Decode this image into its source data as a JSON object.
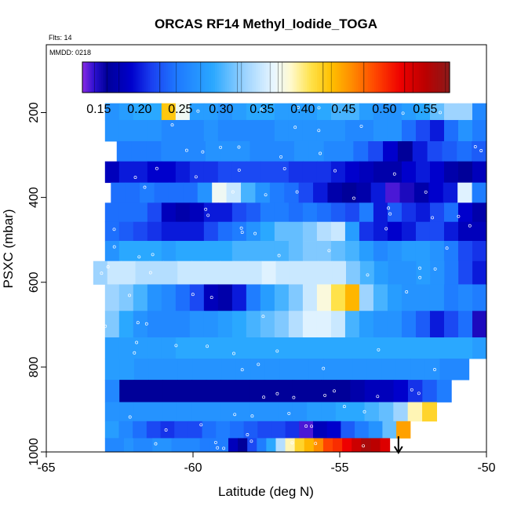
{
  "chart_data": {
    "type": "heatmap",
    "title": "ORCAS RF14 Methyl_Iodide_TOGA",
    "flights_label": "Flts: 14",
    "date_label": "MMDD: 0218",
    "xlabel": "Latitude (deg N)",
    "ylabel": "PSXC (mbar)",
    "xlim": [
      -65,
      -50
    ],
    "ylim": [
      1000,
      40
    ],
    "x_ticks": [
      -65,
      -60,
      -55,
      -50
    ],
    "x_tick_labels": [
      "-65",
      "-60",
      "-55",
      "-50"
    ],
    "y_ticks": [
      200,
      400,
      600,
      800,
      1000
    ],
    "y_tick_labels": [
      "200",
      "400",
      "600",
      "800",
      "1000"
    ],
    "colorbar": {
      "min": 0.13,
      "max": 0.58,
      "ticks": [
        0.15,
        0.2,
        0.25,
        0.3,
        0.35,
        0.4,
        0.45,
        0.5,
        0.55
      ],
      "tick_labels": [
        "0.15",
        "0.20",
        "0.25",
        "0.30",
        "0.35",
        "0.40",
        "0.45",
        "0.50",
        "0.55"
      ],
      "stops": [
        {
          "v": 0.13,
          "c": "#8a2be2"
        },
        {
          "v": 0.145,
          "c": "#2a0fd0"
        },
        {
          "v": 0.16,
          "c": "#000099"
        },
        {
          "v": 0.19,
          "c": "#0000cc"
        },
        {
          "v": 0.215,
          "c": "#1a40f0"
        },
        {
          "v": 0.245,
          "c": "#1e78ff"
        },
        {
          "v": 0.29,
          "c": "#2aa8ff"
        },
        {
          "v": 0.33,
          "c": "#9ed4ff"
        },
        {
          "v": 0.365,
          "c": "#eaf7ff"
        },
        {
          "v": 0.385,
          "c": "#fffad0"
        },
        {
          "v": 0.41,
          "c": "#ffe24a"
        },
        {
          "v": 0.435,
          "c": "#ffc000"
        },
        {
          "v": 0.46,
          "c": "#ff8c00"
        },
        {
          "v": 0.49,
          "c": "#ff4400"
        },
        {
          "v": 0.52,
          "c": "#ee0000"
        },
        {
          "v": 0.55,
          "c": "#bb0000"
        },
        {
          "v": 0.58,
          "c": "#8b1a1a"
        }
      ]
    },
    "arrow_latitude": -53.0,
    "rows": [
      {
        "p": 190,
        "x0": -63.0,
        "x1": -50.0,
        "v": [
          0.27,
          0.28,
          0.29,
          0.29,
          0.43,
          0.37,
          0.28,
          0.28,
          0.27,
          0.28,
          0.29,
          0.29,
          0.28,
          0.28,
          0.28,
          0.29,
          0.3,
          0.3,
          0.28,
          0.27,
          0.27,
          0.28,
          0.29,
          0.31,
          0.33,
          0.33,
          0.26
        ]
      },
      {
        "p": 245,
        "x0": -63.0,
        "x1": -50.0,
        "v": [
          0.27,
          0.27,
          0.27,
          0.27,
          0.26,
          0.26,
          0.26,
          0.27,
          0.26,
          0.26,
          0.26,
          0.26,
          0.27,
          0.27,
          0.27,
          0.27,
          0.27,
          0.26,
          0.26,
          0.27,
          0.27,
          0.24,
          0.22,
          0.2,
          0.24,
          0.27,
          0.25
        ]
      },
      {
        "p": 290,
        "x0": -62.6,
        "x1": -50.0,
        "v": [
          0.25,
          0.25,
          0.25,
          0.26,
          0.26,
          0.26,
          0.27,
          0.27,
          0.27,
          0.26,
          0.26,
          0.26,
          0.27,
          0.27,
          0.26,
          0.26,
          0.24,
          0.22,
          0.19,
          0.16,
          0.2,
          0.22,
          0.23,
          0.24,
          0.23
        ]
      },
      {
        "p": 340,
        "x0": -63.0,
        "x1": -50.0,
        "v": [
          0.18,
          0.2,
          0.2,
          0.19,
          0.19,
          0.2,
          0.21,
          0.21,
          0.22,
          0.22,
          0.22,
          0.22,
          0.22,
          0.21,
          0.21,
          0.21,
          0.2,
          0.19,
          0.18,
          0.17,
          0.17,
          0.19,
          0.2,
          0.19,
          0.17,
          0.16,
          0.18
        ]
      },
      {
        "p": 390,
        "x0": -62.8,
        "x1": -50.0,
        "v": [
          0.24,
          0.24,
          0.25,
          0.24,
          0.24,
          0.24,
          0.27,
          0.37,
          0.35,
          0.3,
          0.27,
          0.25,
          0.24,
          0.22,
          0.2,
          0.17,
          0.16,
          0.17,
          0.2,
          0.14,
          0.15,
          0.17,
          0.19,
          0.2,
          0.36,
          0.25
        ]
      },
      {
        "p": 435,
        "x0": -63.0,
        "x1": -50.0,
        "v": [
          0.24,
          0.24,
          0.24,
          0.22,
          0.18,
          0.17,
          0.18,
          0.2,
          0.2,
          0.22,
          0.23,
          0.25,
          0.25,
          0.24,
          0.25,
          0.24,
          0.23,
          0.22,
          0.25,
          0.2,
          0.23,
          0.21,
          0.2,
          0.22,
          0.24,
          0.19,
          0.17
        ]
      },
      {
        "p": 480,
        "x0": -63.0,
        "x1": -50.0,
        "v": [
          0.24,
          0.23,
          0.22,
          0.21,
          0.2,
          0.2,
          0.2,
          0.22,
          0.24,
          0.25,
          0.27,
          0.29,
          0.31,
          0.31,
          0.32,
          0.34,
          0.35,
          0.28,
          0.21,
          0.2,
          0.19,
          0.2,
          0.22,
          0.22,
          0.2,
          0.18,
          0.18
        ]
      },
      {
        "p": 525,
        "x0": -63.0,
        "x1": -50.0,
        "v": [
          0.27,
          0.29,
          0.29,
          0.29,
          0.28,
          0.29,
          0.29,
          0.29,
          0.29,
          0.3,
          0.3,
          0.3,
          0.3,
          0.31,
          0.32,
          0.32,
          0.31,
          0.3,
          0.28,
          0.26,
          0.27,
          0.28,
          0.28,
          0.27,
          0.25,
          0.22,
          0.21
        ]
      },
      {
        "p": 575,
        "x0": -63.4,
        "x1": -50.0,
        "v": [
          0.33,
          0.35,
          0.35,
          0.34,
          0.34,
          0.34,
          0.35,
          0.35,
          0.35,
          0.35,
          0.35,
          0.35,
          0.36,
          0.35,
          0.35,
          0.35,
          0.35,
          0.35,
          0.32,
          0.3,
          0.28,
          0.27,
          0.27,
          0.28,
          0.27,
          0.25,
          0.22,
          0.2
        ]
      },
      {
        "p": 635,
        "x0": -63.0,
        "x1": -50.0,
        "v": [
          0.33,
          0.32,
          0.3,
          0.27,
          0.26,
          0.24,
          0.22,
          0.18,
          0.17,
          0.2,
          0.25,
          0.28,
          0.3,
          0.32,
          0.35,
          0.38,
          0.41,
          0.44,
          0.33,
          0.3,
          0.28,
          0.27,
          0.27,
          0.27,
          0.25,
          0.26,
          0.25
        ]
      },
      {
        "p": 700,
        "x0": -63.0,
        "x1": -50.0,
        "v": [
          0.32,
          0.29,
          0.27,
          0.26,
          0.26,
          0.26,
          0.27,
          0.27,
          0.28,
          0.29,
          0.3,
          0.31,
          0.32,
          0.34,
          0.36,
          0.36,
          0.35,
          0.3,
          0.28,
          0.27,
          0.27,
          0.25,
          0.23,
          0.2,
          0.22,
          0.24,
          0.15
        ]
      },
      {
        "p": 760,
        "x0": -63.0,
        "x1": -50.0,
        "v": [
          0.28,
          0.28,
          0.28,
          0.28,
          0.28,
          0.29,
          0.29,
          0.29,
          0.29,
          0.29,
          0.29,
          0.29,
          0.29,
          0.29,
          0.29,
          0.29,
          0.29,
          0.29,
          0.29,
          0.29,
          0.29,
          0.29,
          0.29,
          0.29,
          0.29,
          0.29,
          0.28
        ]
      },
      {
        "p": 800,
        "x0": -63.0,
        "x1": -50.6,
        "v": [
          0.28,
          0.28,
          0.27,
          0.27,
          0.27,
          0.27,
          0.27,
          0.27,
          0.27,
          0.27,
          0.27,
          0.27,
          0.27,
          0.27,
          0.27,
          0.27,
          0.27,
          0.27,
          0.27,
          0.27,
          0.27,
          0.27,
          0.27,
          0.26,
          0.26
        ]
      },
      {
        "p": 860,
        "x0": -63.0,
        "x1": -51.2,
        "v": [
          0.26,
          0.16,
          0.16,
          0.16,
          0.16,
          0.16,
          0.16,
          0.16,
          0.16,
          0.16,
          0.16,
          0.16,
          0.16,
          0.16,
          0.16,
          0.16,
          0.16,
          0.17,
          0.18,
          0.18,
          0.19,
          0.21,
          0.23,
          0.25
        ]
      },
      {
        "p": 905,
        "x0": -63.0,
        "x1": -51.7,
        "v": [
          0.27,
          0.27,
          0.27,
          0.27,
          0.27,
          0.27,
          0.27,
          0.27,
          0.27,
          0.27,
          0.27,
          0.27,
          0.27,
          0.27,
          0.28,
          0.28,
          0.29,
          0.29,
          0.3,
          0.31,
          0.33,
          0.39,
          0.42
        ]
      },
      {
        "p": 950,
        "x0": -63.0,
        "x1": -52.6,
        "v": [
          0.28,
          0.26,
          0.24,
          0.22,
          0.21,
          0.22,
          0.22,
          0.24,
          0.25,
          0.24,
          0.23,
          0.22,
          0.22,
          0.21,
          0.14,
          0.18,
          0.19,
          0.23,
          0.25,
          0.27,
          0.31,
          0.45
        ]
      },
      {
        "p": 985,
        "x0": -63.0,
        "x1": -53.3,
        "v": [
          0.26,
          0.26,
          0.27,
          0.26,
          0.26,
          0.27,
          0.27,
          0.26,
          0.26,
          0.26,
          0.25,
          0.25,
          0.25,
          0.18,
          0.16,
          0.22,
          0.25,
          0.29,
          0.34,
          0.39,
          0.42,
          0.44,
          0.46,
          0.49,
          0.5,
          0.52,
          0.54,
          0.56,
          0.55,
          0.53
        ]
      }
    ]
  }
}
